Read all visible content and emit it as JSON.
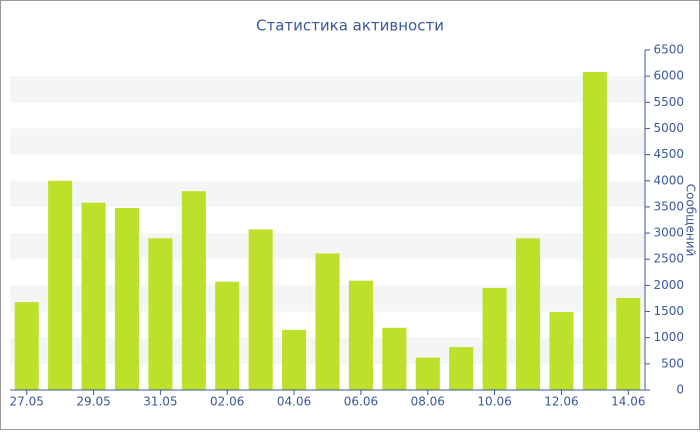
{
  "chart_data": {
    "type": "bar",
    "title": "Статистика активности",
    "y_label": "Сообщений",
    "categories": [
      "27.05",
      null,
      "29.05",
      null,
      "31.05",
      null,
      "02.06",
      null,
      "04.06",
      null,
      "06.06",
      null,
      "08.06",
      null,
      "10.06",
      null,
      "12.06",
      null,
      "14.06"
    ],
    "values": [
      1680,
      4000,
      3580,
      3480,
      2900,
      3800,
      2070,
      3070,
      1150,
      2610,
      2090,
      1190,
      620,
      820,
      1950,
      2900,
      1490,
      6080,
      1760
    ],
    "color": "#bde02a",
    "ylim": [
      0,
      6500
    ],
    "yticks": [
      0,
      500,
      1000,
      1500,
      2000,
      2500,
      3000,
      3500,
      4000,
      4500,
      5000,
      5500,
      6000,
      6500
    ],
    "grid": true
  }
}
